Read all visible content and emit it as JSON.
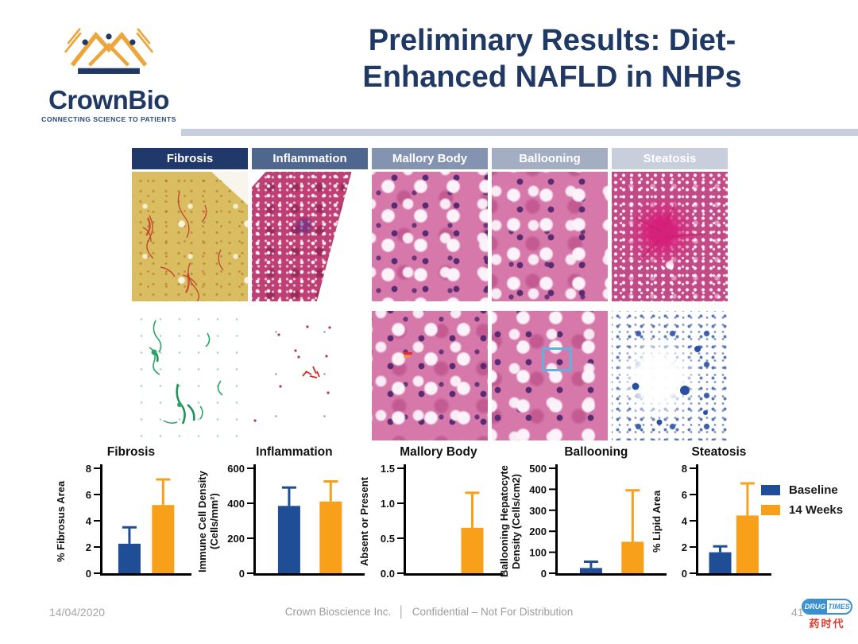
{
  "slide": {
    "title_line1": "Preliminary Results: Diet-",
    "title_line2": "Enhanced NAFLD in NHPs",
    "accent_color": "#1F3864",
    "rule_color": "#C7CEDC"
  },
  "logo": {
    "name": "CrownBio",
    "tagline": "CONNECTING SCIENCE TO PATIENTS",
    "crown_gold": "#EDA63C",
    "navy": "#1F3864"
  },
  "panels": {
    "columns": [
      {
        "label": "Fibrosis",
        "header_color": "#21386B"
      },
      {
        "label": "Inflammation",
        "header_color": "#4F668F"
      },
      {
        "label": "Mallory Body",
        "header_color": "#8494B0"
      },
      {
        "label": "Ballooning",
        "header_color": "#A4AEC3"
      },
      {
        "label": "Steatosis",
        "header_color": "#C8CEDB"
      }
    ]
  },
  "chart_data": [
    {
      "type": "bar",
      "title": "Fibrosis",
      "ylabel": "% Fibrosus Area",
      "ylim": [
        0,
        8
      ],
      "yticks": [
        {
          "v": 0,
          "label": "0"
        },
        {
          "v": 2,
          "label": "2"
        },
        {
          "v": 4,
          "label": "4"
        },
        {
          "v": 6,
          "label": "6"
        },
        {
          "v": 8,
          "label": "8"
        }
      ],
      "categories": [
        "Baseline",
        "14 Weeks"
      ],
      "values": [
        2.25,
        5.2
      ],
      "errors_plus": [
        1.25,
        1.95
      ]
    },
    {
      "type": "bar",
      "title": "Inflammation",
      "ylabel": "Immune Cell Density (Cells/mm²)",
      "ylim": [
        0,
        600
      ],
      "yticks": [
        {
          "v": 0,
          "label": "0"
        },
        {
          "v": 200,
          "label": "200"
        },
        {
          "v": 400,
          "label": "400"
        },
        {
          "v": 600,
          "label": "600"
        }
      ],
      "categories": [
        "Baseline",
        "14 Weeks"
      ],
      "values": [
        385,
        410
      ],
      "errors_plus": [
        105,
        115
      ]
    },
    {
      "type": "bar",
      "title": "Mallory Body",
      "ylabel": "Absent or Present",
      "ylim": [
        0,
        1.5
      ],
      "yticks": [
        {
          "v": 0,
          "label": "0.0"
        },
        {
          "v": 0.5,
          "label": "0.5"
        },
        {
          "v": 1,
          "label": "1.0"
        },
        {
          "v": 1.5,
          "label": "1.5"
        }
      ],
      "categories": [
        "Baseline",
        "14 Weeks"
      ],
      "values": [
        0,
        0.65
      ],
      "errors_plus": [
        0,
        0.5
      ]
    },
    {
      "type": "bar",
      "title": "Ballooning",
      "ylabel": "Ballooning Hepatocyte Density (Cells/cm2)",
      "ylim": [
        0,
        500
      ],
      "yticks": [
        {
          "v": 0,
          "label": "0"
        },
        {
          "v": 100,
          "label": "100"
        },
        {
          "v": 200,
          "label": "200"
        },
        {
          "v": 300,
          "label": "300"
        },
        {
          "v": 400,
          "label": "400"
        },
        {
          "v": 500,
          "label": "500"
        }
      ],
      "categories": [
        "Baseline",
        "14 Weeks"
      ],
      "values": [
        25,
        150
      ],
      "errors_plus": [
        30,
        245
      ]
    },
    {
      "type": "bar",
      "title": "Steatosis",
      "ylabel": "% Lipid Area",
      "ylim": [
        0,
        8
      ],
      "yticks": [
        {
          "v": 0,
          "label": "0"
        },
        {
          "v": 2,
          "label": "2"
        },
        {
          "v": 4,
          "label": "4"
        },
        {
          "v": 6,
          "label": "6"
        },
        {
          "v": 8,
          "label": "8"
        }
      ],
      "categories": [
        "Baseline",
        "14 Weeks"
      ],
      "values": [
        1.6,
        4.4
      ],
      "errors_plus": [
        0.45,
        2.45
      ]
    }
  ],
  "legend": {
    "items": [
      {
        "label": "Baseline",
        "color": "#1F4E96"
      },
      {
        "label": "14 Weeks",
        "color": "#F9A01B"
      }
    ]
  },
  "footer": {
    "date": "14/04/2020",
    "company": "Crown Bioscience Inc.",
    "divider": "│",
    "confidential": "Confidential – Not For Distribution",
    "page_number": "41",
    "watermark": {
      "badge_left": "DRUG",
      "badge_right": "TIMES",
      "caption": "药时代"
    }
  }
}
